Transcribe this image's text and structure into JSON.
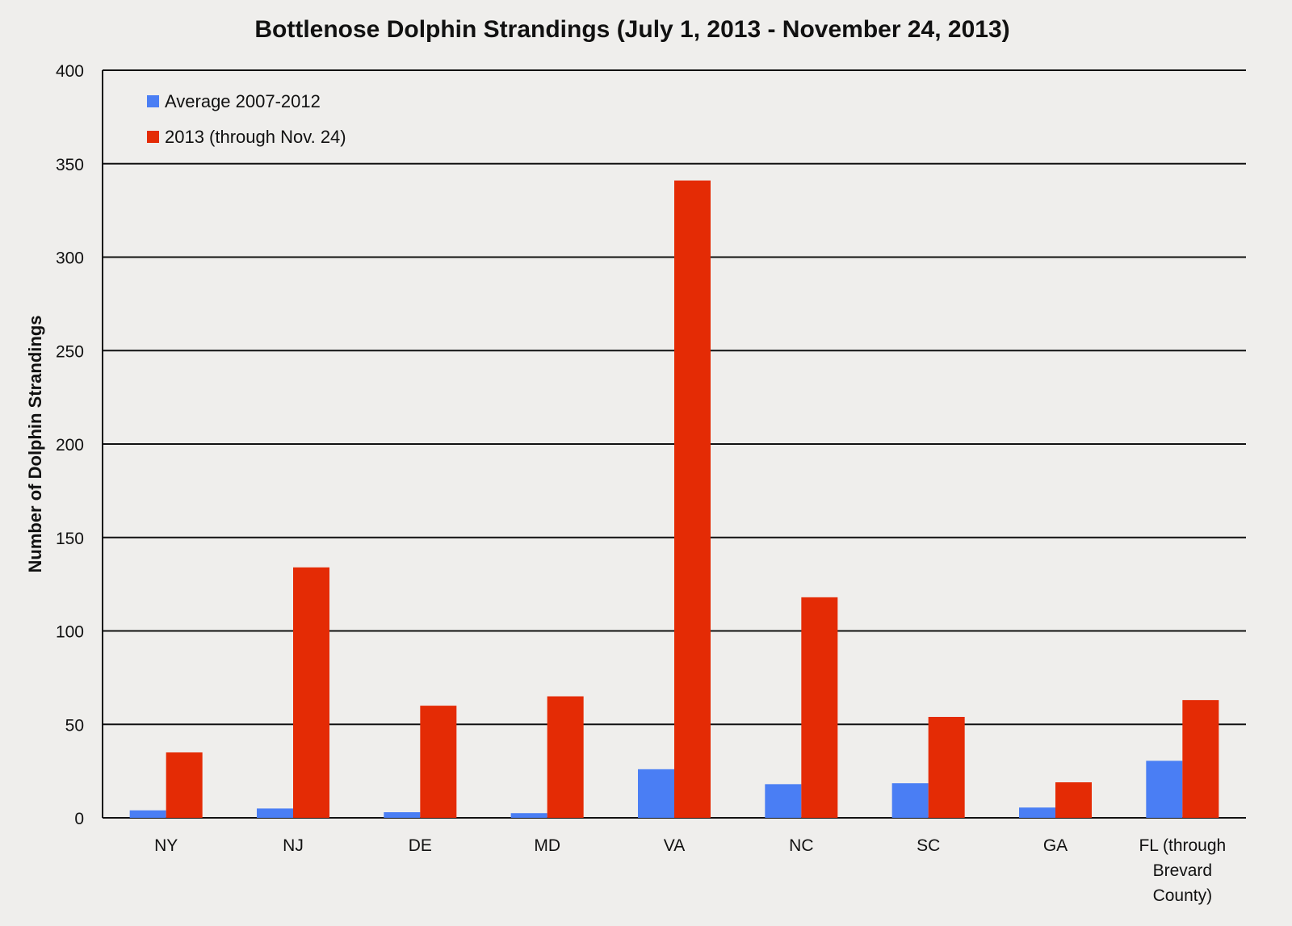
{
  "chart_data": {
    "type": "bar",
    "title": "Bottlenose Dolphin Strandings (July 1, 2013 - November 24, 2013)",
    "xlabel": "",
    "ylabel": "Number of Dolphin Strandings",
    "ylim": [
      0,
      400
    ],
    "yticks": [
      0,
      50,
      100,
      150,
      200,
      250,
      300,
      350,
      400
    ],
    "grid": true,
    "legend_position": "top-left",
    "categories": [
      [
        "NY"
      ],
      [
        "NJ"
      ],
      [
        "DE"
      ],
      [
        "MD"
      ],
      [
        "VA"
      ],
      [
        "NC"
      ],
      [
        "SC"
      ],
      [
        "GA"
      ],
      [
        "FL (through",
        "Brevard",
        "County)"
      ]
    ],
    "series": [
      {
        "name": "Average 2007-2012",
        "color": "#4a7ef4",
        "values": [
          4,
          5,
          3,
          2.5,
          26,
          18,
          18.5,
          5.5,
          30.5
        ]
      },
      {
        "name": "2013 (through Nov. 24)",
        "color": "#e42b05",
        "values": [
          35,
          134,
          60,
          65,
          341,
          118,
          54,
          19,
          63
        ]
      }
    ]
  }
}
